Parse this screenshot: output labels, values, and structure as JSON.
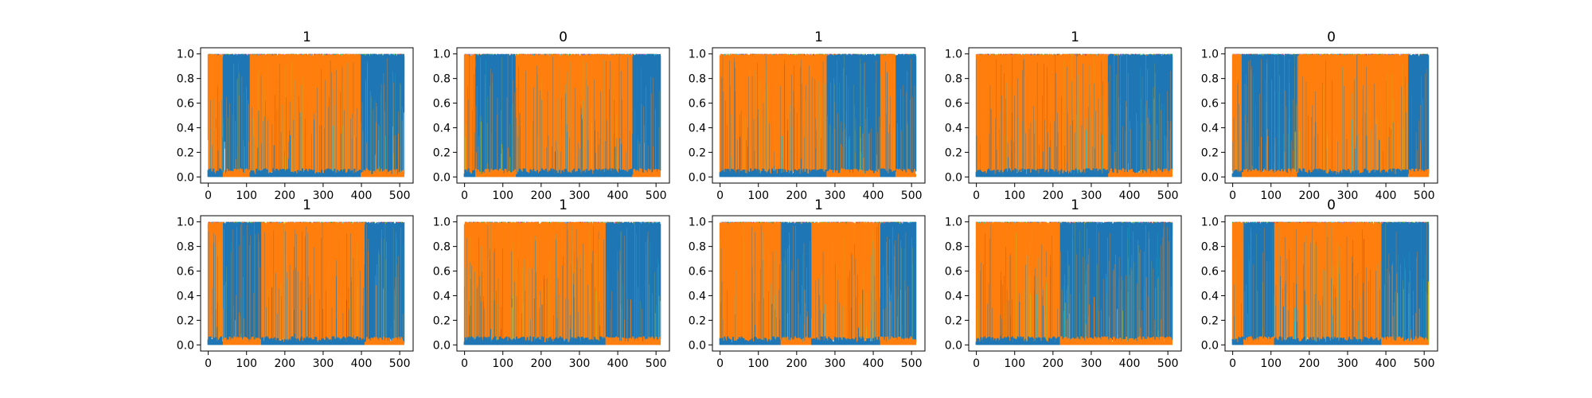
{
  "chart_data": [
    {
      "type": "line",
      "title": "1",
      "segments": [
        [
          0,
          40,
          "orange"
        ],
        [
          40,
          110,
          "blue"
        ],
        [
          110,
          140,
          "orange"
        ],
        [
          140,
          290,
          "orange"
        ],
        [
          290,
          400,
          "orange"
        ],
        [
          400,
          520,
          "blue"
        ]
      ],
      "xticks": [
        0,
        100,
        200,
        300,
        400,
        500
      ],
      "yticks": [
        0.0,
        0.2,
        0.4,
        0.6,
        0.8,
        1.0
      ],
      "xlim": [
        -20,
        535
      ],
      "ylim": [
        -0.05,
        1.05
      ]
    },
    {
      "type": "line",
      "title": "0",
      "segments": [
        [
          0,
          30,
          "orange"
        ],
        [
          30,
          135,
          "blue"
        ],
        [
          135,
          440,
          "orange"
        ],
        [
          440,
          520,
          "blue"
        ]
      ],
      "xticks": [
        0,
        100,
        200,
        300,
        400,
        500
      ],
      "yticks": [
        0.0,
        0.2,
        0.4,
        0.6,
        0.8,
        1.0
      ],
      "xlim": [
        -20,
        535
      ],
      "ylim": [
        -0.05,
        1.05
      ]
    },
    {
      "type": "line",
      "title": "1",
      "segments": [
        [
          0,
          280,
          "orange"
        ],
        [
          280,
          420,
          "blue"
        ],
        [
          420,
          460,
          "orange"
        ],
        [
          460,
          520,
          "blue"
        ]
      ],
      "xticks": [
        0,
        100,
        200,
        300,
        400,
        500
      ],
      "yticks": [
        0.0,
        0.2,
        0.4,
        0.6,
        0.8,
        1.0
      ],
      "xlim": [
        -20,
        535
      ],
      "ylim": [
        -0.05,
        1.05
      ]
    },
    {
      "type": "line",
      "title": "1",
      "segments": [
        [
          0,
          345,
          "orange"
        ],
        [
          345,
          520,
          "blue"
        ]
      ],
      "xticks": [
        0,
        100,
        200,
        300,
        400,
        500
      ],
      "yticks": [
        0.0,
        0.2,
        0.4,
        0.6,
        0.8,
        1.0
      ],
      "xlim": [
        -20,
        535
      ],
      "ylim": [
        -0.05,
        1.05
      ]
    },
    {
      "type": "line",
      "title": "0",
      "segments": [
        [
          0,
          25,
          "orange"
        ],
        [
          25,
          170,
          "blue"
        ],
        [
          170,
          460,
          "orange"
        ],
        [
          460,
          520,
          "blue"
        ]
      ],
      "xticks": [
        0,
        100,
        200,
        300,
        400,
        500
      ],
      "yticks": [
        0.0,
        0.2,
        0.4,
        0.6,
        0.8,
        1.0
      ],
      "xlim": [
        -20,
        535
      ],
      "ylim": [
        -0.05,
        1.05
      ]
    },
    {
      "type": "line",
      "title": "1",
      "segments": [
        [
          0,
          40,
          "orange"
        ],
        [
          40,
          140,
          "blue"
        ],
        [
          140,
          410,
          "orange"
        ],
        [
          410,
          520,
          "blue"
        ]
      ],
      "xticks": [
        0,
        100,
        200,
        300,
        400,
        500
      ],
      "yticks": [
        0.0,
        0.2,
        0.4,
        0.6,
        0.8,
        1.0
      ],
      "xlim": [
        -20,
        535
      ],
      "ylim": [
        -0.05,
        1.05
      ]
    },
    {
      "type": "line",
      "title": "1",
      "segments": [
        [
          0,
          370,
          "orange"
        ],
        [
          370,
          520,
          "blue"
        ]
      ],
      "xticks": [
        0,
        100,
        200,
        300,
        400,
        500
      ],
      "yticks": [
        0.0,
        0.2,
        0.4,
        0.6,
        0.8,
        1.0
      ],
      "xlim": [
        -20,
        535
      ],
      "ylim": [
        -0.05,
        1.05
      ]
    },
    {
      "type": "line",
      "title": "1",
      "segments": [
        [
          0,
          160,
          "orange"
        ],
        [
          160,
          240,
          "blue"
        ],
        [
          240,
          420,
          "orange"
        ],
        [
          420,
          520,
          "blue"
        ]
      ],
      "xticks": [
        0,
        100,
        200,
        300,
        400,
        500
      ],
      "yticks": [
        0.0,
        0.2,
        0.4,
        0.6,
        0.8,
        1.0
      ],
      "xlim": [
        -20,
        535
      ],
      "ylim": [
        -0.05,
        1.05
      ]
    },
    {
      "type": "line",
      "title": "1",
      "segments": [
        [
          0,
          220,
          "orange"
        ],
        [
          220,
          380,
          "blue"
        ],
        [
          380,
          520,
          "blue"
        ]
      ],
      "xticks": [
        0,
        100,
        200,
        300,
        400,
        500
      ],
      "yticks": [
        0.0,
        0.2,
        0.4,
        0.6,
        0.8,
        1.0
      ],
      "xlim": [
        -20,
        535
      ],
      "ylim": [
        -0.05,
        1.05
      ]
    },
    {
      "type": "line",
      "title": "0",
      "segments": [
        [
          0,
          30,
          "orange"
        ],
        [
          30,
          110,
          "blue"
        ],
        [
          110,
          390,
          "orange"
        ],
        [
          390,
          520,
          "blue"
        ]
      ],
      "xticks": [
        0,
        100,
        200,
        300,
        400,
        500
      ],
      "yticks": [
        0.0,
        0.2,
        0.4,
        0.6,
        0.8,
        1.0
      ],
      "xlim": [
        -20,
        535
      ],
      "ylim": [
        -0.05,
        1.05
      ]
    }
  ],
  "colors": {
    "blue": "#1f77b4",
    "orange": "#ff7f0e",
    "cyan": "#17becf",
    "olive": "#bcbd22",
    "green": "#2ca02c",
    "pink": "#e377c2",
    "purple": "#9467bd",
    "red": "#d62728"
  }
}
